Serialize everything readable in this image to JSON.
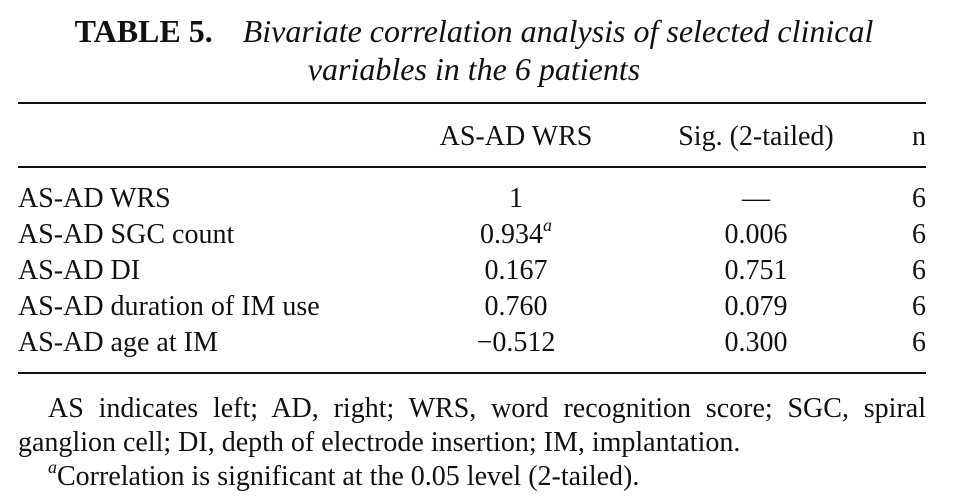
{
  "table": {
    "label": "TABLE 5.",
    "title": "Bivariate correlation analysis of selected clinical variables in the 6 patients",
    "columns": [
      "AS-AD WRS",
      "Sig. (2-tailed)",
      "n"
    ],
    "rows": [
      {
        "label": "AS-AD WRS",
        "wrs": "1",
        "sup": "",
        "sig": "—",
        "n": "6"
      },
      {
        "label": "AS-AD SGC count",
        "wrs": "0.934",
        "sup": "a",
        "sig": "0.006",
        "n": "6"
      },
      {
        "label": "AS-AD DI",
        "wrs": "0.167",
        "sup": "",
        "sig": "0.751",
        "n": "6"
      },
      {
        "label": "AS-AD duration of IM use",
        "wrs": "0.760",
        "sup": "",
        "sig": "0.079",
        "n": "6"
      },
      {
        "label": "AS-AD age at IM",
        "wrs": "−0.512",
        "sup": "",
        "sig": "0.300",
        "n": "6"
      }
    ]
  },
  "footnotes": {
    "abbreviations": "AS indicates left; AD, right; WRS, word recognition score; SGC, spiral ganglion cell; DI, depth of electrode insertion; IM, implantation.",
    "marker": "a",
    "significance": "Correlation is significant at the 0.05 level (2-tailed)."
  }
}
